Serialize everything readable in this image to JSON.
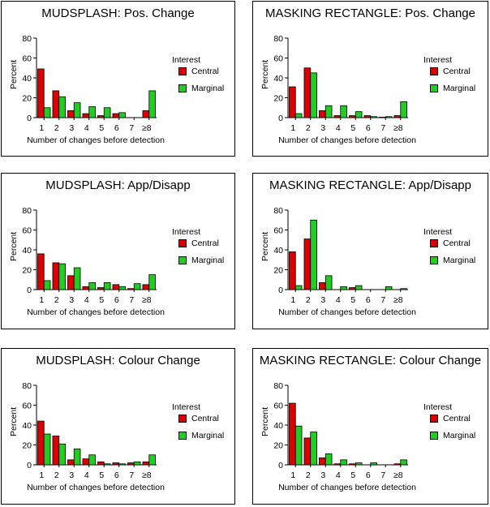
{
  "chart_data": [
    {
      "type": "bar",
      "title": "MUDSPLASH: Pos. Change",
      "xlabel": "Number of changes before detection",
      "ylabel": "Percent",
      "ylim": [
        0,
        80
      ],
      "yticks": [
        0,
        20,
        40,
        60,
        80
      ],
      "categories": [
        "1",
        "2",
        "3",
        "4",
        "5",
        "6",
        "7",
        "≥8"
      ],
      "legend_title": "Interest",
      "series": [
        {
          "name": "Central",
          "color": "#dd0000",
          "values": [
            49,
            27,
            7,
            4,
            2,
            4,
            0,
            7
          ]
        },
        {
          "name": "Marginal",
          "color": "#22cc22",
          "values": [
            10,
            21,
            15,
            11,
            10,
            5,
            0,
            27
          ]
        }
      ]
    },
    {
      "type": "bar",
      "title": "MASKING RECTANGLE: Pos. Change",
      "xlabel": "Number of changes before detection",
      "ylabel": "Percent",
      "ylim": [
        0,
        80
      ],
      "yticks": [
        0,
        20,
        40,
        60,
        80
      ],
      "categories": [
        "1",
        "2",
        "3",
        "4",
        "5",
        "6",
        "7",
        "≥8"
      ],
      "legend_title": "Interest",
      "series": [
        {
          "name": "Central",
          "color": "#dd0000",
          "values": [
            31,
            50,
            7,
            2,
            2,
            2,
            0.5,
            2
          ]
        },
        {
          "name": "Marginal",
          "color": "#22cc22",
          "values": [
            4,
            45,
            12,
            12,
            6,
            1,
            1,
            16
          ]
        }
      ]
    },
    {
      "type": "bar",
      "title": "MUDSPLASH: App/Disapp",
      "xlabel": "Number of changes before detection",
      "ylabel": "Percent",
      "ylim": [
        0,
        80
      ],
      "yticks": [
        0,
        20,
        40,
        60,
        80
      ],
      "categories": [
        "1",
        "2",
        "3",
        "4",
        "5",
        "6",
        "7",
        "≥8"
      ],
      "legend_title": "Interest",
      "series": [
        {
          "name": "Central",
          "color": "#dd0000",
          "values": [
            36,
            27,
            14,
            3,
            2,
            5,
            1,
            5
          ]
        },
        {
          "name": "Marginal",
          "color": "#22cc22",
          "values": [
            9,
            26,
            22,
            7,
            7,
            3,
            6,
            15
          ]
        }
      ]
    },
    {
      "type": "bar",
      "title": "MASKING RECTANGLE: App/Disapp",
      "xlabel": "Number of changes before detection",
      "ylabel": "Percent",
      "ylim": [
        0,
        80
      ],
      "yticks": [
        0,
        20,
        40,
        60,
        80
      ],
      "categories": [
        "1",
        "2",
        "3",
        "4",
        "5",
        "6",
        "7",
        "≥8"
      ],
      "legend_title": "Interest",
      "series": [
        {
          "name": "Central",
          "color": "#dd0000",
          "values": [
            38,
            51,
            7,
            0,
            2,
            0,
            0,
            0
          ]
        },
        {
          "name": "Marginal",
          "color": "#22cc22",
          "values": [
            4,
            70,
            14,
            3,
            4,
            0,
            3,
            1
          ]
        }
      ]
    },
    {
      "type": "bar",
      "title": "MUDSPLASH: Colour Change",
      "xlabel": "Number of changes before detection",
      "ylabel": "Percent",
      "ylim": [
        0,
        80
      ],
      "yticks": [
        0,
        20,
        40,
        60,
        80
      ],
      "categories": [
        "1",
        "2",
        "3",
        "4",
        "5",
        "6",
        "7",
        "≥8"
      ],
      "legend_title": "Interest",
      "series": [
        {
          "name": "Central",
          "color": "#dd0000",
          "values": [
            44,
            29,
            5,
            6,
            3,
            2,
            2,
            3
          ]
        },
        {
          "name": "Marginal",
          "color": "#22cc22",
          "values": [
            31,
            21,
            16,
            10,
            1,
            1,
            3,
            10
          ]
        }
      ]
    },
    {
      "type": "bar",
      "title": "MASKING RECTANGLE: Colour Change",
      "xlabel": "Number of changes before detection",
      "ylabel": "Percent",
      "ylim": [
        0,
        80
      ],
      "yticks": [
        0,
        20,
        40,
        60,
        80
      ],
      "categories": [
        "1",
        "2",
        "3",
        "4",
        "5",
        "6",
        "7",
        "≥8"
      ],
      "legend_title": "Interest",
      "series": [
        {
          "name": "Central",
          "color": "#dd0000",
          "values": [
            62,
            27,
            7,
            1,
            1,
            0,
            0,
            1
          ]
        },
        {
          "name": "Marginal",
          "color": "#22cc22",
          "values": [
            39,
            33,
            11,
            5,
            2,
            2,
            0,
            5
          ]
        }
      ]
    }
  ]
}
